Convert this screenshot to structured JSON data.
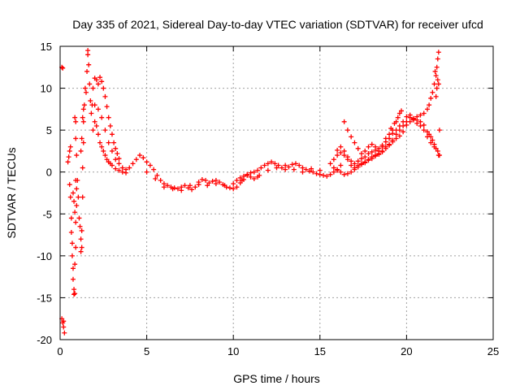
{
  "chart_data": {
    "type": "scatter",
    "title": "Day 335 of 2021, Sidereal Day-to-day VTEC variation (SDTVAR) for receiver ufcd",
    "xlabel": "GPS time / hours",
    "ylabel": "SDTVAR / TECUs",
    "xlim": [
      0,
      25
    ],
    "ylim": [
      -20,
      15
    ],
    "xticks": [
      0,
      5,
      10,
      15,
      20,
      25
    ],
    "yticks": [
      -20,
      -15,
      -10,
      -5,
      0,
      5,
      10,
      15
    ],
    "grid": true,
    "marker": "+",
    "series": [
      {
        "name": "SDTVAR",
        "color": "#ff0000",
        "points": [
          [
            0.1,
            12.5
          ],
          [
            0.15,
            12.4
          ],
          [
            0.1,
            -17.5
          ],
          [
            0.15,
            -18.0
          ],
          [
            0.2,
            -18.5
          ],
          [
            0.25,
            -19.2
          ],
          [
            0.2,
            -17.8
          ],
          [
            0.45,
            1.2
          ],
          [
            0.5,
            1.8
          ],
          [
            0.55,
            2.5
          ],
          [
            0.6,
            3.0
          ],
          [
            0.55,
            -1.5
          ],
          [
            0.6,
            -3.0
          ],
          [
            0.65,
            -5.5
          ],
          [
            0.65,
            -7.2
          ],
          [
            0.7,
            -8.5
          ],
          [
            0.7,
            -10.0
          ],
          [
            0.75,
            -11.5
          ],
          [
            0.75,
            -12.8
          ],
          [
            0.8,
            -14.0
          ],
          [
            0.8,
            -14.6
          ],
          [
            0.85,
            -14.5
          ],
          [
            0.85,
            -11.0
          ],
          [
            0.9,
            -9.0
          ],
          [
            0.9,
            -6.0
          ],
          [
            0.95,
            -4.0
          ],
          [
            0.95,
            -2.0
          ],
          [
            0.9,
            -1.0
          ],
          [
            0.75,
            -2.5
          ],
          [
            0.8,
            -3.5
          ],
          [
            0.85,
            -4.8
          ],
          [
            0.85,
            6.5
          ],
          [
            0.9,
            6.0
          ],
          [
            0.9,
            4.0
          ],
          [
            0.95,
            2.0
          ],
          [
            1.0,
            -1.0
          ],
          [
            1.05,
            -3.0
          ],
          [
            1.1,
            -5.5
          ],
          [
            1.15,
            -6.5
          ],
          [
            1.2,
            -8.0
          ],
          [
            1.2,
            -9.5
          ],
          [
            1.25,
            -9.0
          ],
          [
            1.25,
            -7.0
          ],
          [
            1.3,
            -3.0
          ],
          [
            1.3,
            0.5
          ],
          [
            1.35,
            3.5
          ],
          [
            1.35,
            6.0
          ],
          [
            1.4,
            8.0
          ],
          [
            1.45,
            10.0
          ],
          [
            1.2,
            2.5
          ],
          [
            1.25,
            4.0
          ],
          [
            1.3,
            6.5
          ],
          [
            1.35,
            7.5
          ],
          [
            1.5,
            9.5
          ],
          [
            1.55,
            12.0
          ],
          [
            1.6,
            14.0
          ],
          [
            1.6,
            14.5
          ],
          [
            1.65,
            12.8
          ],
          [
            1.7,
            10.5
          ],
          [
            1.75,
            8.5
          ],
          [
            1.8,
            7.0
          ],
          [
            1.85,
            8.0
          ],
          [
            1.9,
            10.0
          ],
          [
            2.0,
            11.2
          ],
          [
            2.1,
            11.0
          ],
          [
            2.2,
            10.5
          ],
          [
            2.3,
            11.3
          ],
          [
            2.4,
            10.8
          ],
          [
            2.5,
            10.0
          ],
          [
            2.6,
            9.0
          ],
          [
            2.7,
            7.8
          ],
          [
            2.8,
            6.5
          ],
          [
            2.9,
            5.5
          ],
          [
            3.0,
            4.5
          ],
          [
            3.1,
            3.5
          ],
          [
            3.2,
            2.8
          ],
          [
            3.3,
            2.2
          ],
          [
            3.4,
            1.6
          ],
          [
            1.9,
            5.0
          ],
          [
            2.0,
            6.0
          ],
          [
            2.1,
            5.5
          ],
          [
            2.2,
            4.5
          ],
          [
            2.3,
            3.5
          ],
          [
            2.4,
            3.0
          ],
          [
            2.5,
            2.5
          ],
          [
            2.6,
            2.0
          ],
          [
            2.7,
            1.5
          ],
          [
            2.8,
            1.2
          ],
          [
            2.9,
            1.0
          ],
          [
            3.0,
            0.8
          ],
          [
            3.2,
            0.4
          ],
          [
            3.4,
            0.2
          ],
          [
            3.6,
            0.0
          ],
          [
            3.8,
            -0.1
          ],
          [
            2.0,
            8.0
          ],
          [
            2.2,
            7.5
          ],
          [
            2.4,
            6.5
          ],
          [
            2.6,
            5.0
          ],
          [
            2.8,
            3.5
          ],
          [
            3.0,
            2.5
          ],
          [
            3.2,
            1.5
          ],
          [
            3.4,
            1.0
          ],
          [
            3.6,
            0.5
          ],
          [
            3.8,
            0.3
          ],
          [
            4.0,
            0.5
          ],
          [
            4.2,
            1.0
          ],
          [
            4.4,
            1.5
          ],
          [
            4.6,
            2.0
          ],
          [
            4.8,
            1.7
          ],
          [
            5.0,
            1.2
          ],
          [
            5.2,
            0.8
          ],
          [
            5.4,
            0.3
          ],
          [
            5.6,
            -0.4
          ],
          [
            5.8,
            -1.0
          ],
          [
            6.0,
            -1.4
          ],
          [
            6.2,
            -1.6
          ],
          [
            6.4,
            -1.8
          ],
          [
            6.6,
            -1.9
          ],
          [
            6.8,
            -2.0
          ],
          [
            7.0,
            -1.8
          ],
          [
            7.2,
            -1.6
          ],
          [
            7.4,
            -1.9
          ],
          [
            7.6,
            -2.1
          ],
          [
            7.8,
            -1.8
          ],
          [
            8.0,
            -1.2
          ],
          [
            8.2,
            -0.9
          ],
          [
            8.4,
            -1.0
          ],
          [
            8.6,
            -1.3
          ],
          [
            8.8,
            -1.1
          ],
          [
            9.0,
            -1.0
          ],
          [
            9.2,
            -1.2
          ],
          [
            9.4,
            -1.5
          ],
          [
            9.6,
            -1.8
          ],
          [
            9.8,
            -1.9
          ],
          [
            10.0,
            -2.0
          ],
          [
            10.2,
            -1.8
          ],
          [
            10.4,
            -1.3
          ],
          [
            10.6,
            -0.9
          ],
          [
            10.8,
            -0.4
          ],
          [
            11.0,
            -0.1
          ],
          [
            11.2,
            0.0
          ],
          [
            11.4,
            0.2
          ],
          [
            11.6,
            0.5
          ],
          [
            11.8,
            0.8
          ],
          [
            12.0,
            1.0
          ],
          [
            12.2,
            1.2
          ],
          [
            12.4,
            1.0
          ],
          [
            12.6,
            0.8
          ],
          [
            12.8,
            0.5
          ],
          [
            13.0,
            0.3
          ],
          [
            13.2,
            0.6
          ],
          [
            13.4,
            0.9
          ],
          [
            13.6,
            1.0
          ],
          [
            13.8,
            0.8
          ],
          [
            14.0,
            0.5
          ],
          [
            14.2,
            0.3
          ],
          [
            14.4,
            0.1
          ],
          [
            14.6,
            0.0
          ],
          [
            14.8,
            -0.2
          ],
          [
            15.0,
            -0.3
          ],
          [
            15.2,
            -0.4
          ],
          [
            15.4,
            -0.5
          ],
          [
            15.6,
            -0.3
          ],
          [
            15.8,
            0.0
          ],
          [
            16.0,
            0.3
          ],
          [
            16.2,
            0.8
          ],
          [
            5.0,
            0.0
          ],
          [
            5.5,
            -0.8
          ],
          [
            6.0,
            -1.8
          ],
          [
            6.5,
            -2.0
          ],
          [
            7.0,
            -2.2
          ],
          [
            7.5,
            -1.6
          ],
          [
            8.0,
            -1.5
          ],
          [
            8.5,
            -1.6
          ],
          [
            9.0,
            -1.4
          ],
          [
            9.5,
            -1.6
          ],
          [
            10.0,
            -1.4
          ],
          [
            10.5,
            -1.0
          ],
          [
            11.0,
            -0.6
          ],
          [
            11.5,
            -0.4
          ],
          [
            12.0,
            0.2
          ],
          [
            12.5,
            0.5
          ],
          [
            13.0,
            0.8
          ],
          [
            13.5,
            0.3
          ],
          [
            14.0,
            0.0
          ],
          [
            14.5,
            0.4
          ],
          [
            15.0,
            0.2
          ],
          [
            10.2,
            -1.0
          ],
          [
            10.4,
            -0.7
          ],
          [
            10.6,
            -0.5
          ],
          [
            10.8,
            -0.3
          ],
          [
            11.2,
            -0.8
          ],
          [
            11.4,
            -0.6
          ],
          [
            15.6,
            1.0
          ],
          [
            15.8,
            1.5
          ],
          [
            16.0,
            2.0
          ],
          [
            16.2,
            2.3
          ],
          [
            16.4,
            2.0
          ],
          [
            16.6,
            1.5
          ],
          [
            16.8,
            0.8
          ],
          [
            17.0,
            0.5
          ],
          [
            17.2,
            0.8
          ],
          [
            17.4,
            1.0
          ],
          [
            17.6,
            1.2
          ],
          [
            17.8,
            1.5
          ],
          [
            18.0,
            1.8
          ],
          [
            18.2,
            2.0
          ],
          [
            18.4,
            2.2
          ],
          [
            18.6,
            2.5
          ],
          [
            18.8,
            3.0
          ],
          [
            19.0,
            3.3
          ],
          [
            19.2,
            3.8
          ],
          [
            19.4,
            4.5
          ],
          [
            19.6,
            5.0
          ],
          [
            19.8,
            5.5
          ],
          [
            20.0,
            6.0
          ],
          [
            20.2,
            6.5
          ],
          [
            20.4,
            6.2
          ],
          [
            20.6,
            5.8
          ],
          [
            20.8,
            5.5
          ],
          [
            21.0,
            5.0
          ],
          [
            21.2,
            4.2
          ],
          [
            21.4,
            3.5
          ],
          [
            21.6,
            3.0
          ],
          [
            21.8,
            2.5
          ],
          [
            21.85,
            2.0
          ],
          [
            16.4,
            6.0
          ],
          [
            16.6,
            5.0
          ],
          [
            16.8,
            4.2
          ],
          [
            17.0,
            3.5
          ],
          [
            17.2,
            2.8
          ],
          [
            17.4,
            2.2
          ],
          [
            17.6,
            2.5
          ],
          [
            17.8,
            3.0
          ],
          [
            18.0,
            3.3
          ],
          [
            18.2,
            3.0
          ],
          [
            18.4,
            2.5
          ],
          [
            18.6,
            3.2
          ],
          [
            18.8,
            4.0
          ],
          [
            19.0,
            4.5
          ],
          [
            19.2,
            5.0
          ],
          [
            19.4,
            6.0
          ],
          [
            19.6,
            7.0
          ],
          [
            19.7,
            7.3
          ],
          [
            19.5,
            6.5
          ],
          [
            19.3,
            5.8
          ],
          [
            19.1,
            5.2
          ],
          [
            15.8,
            0.5
          ],
          [
            16.0,
            0.2
          ],
          [
            16.2,
            0.0
          ],
          [
            16.4,
            -0.3
          ],
          [
            16.6,
            -0.2
          ],
          [
            16.8,
            0.0
          ],
          [
            17.0,
            0.3
          ],
          [
            17.2,
            0.6
          ],
          [
            17.4,
            0.9
          ],
          [
            17.6,
            1.1
          ],
          [
            17.8,
            1.4
          ],
          [
            18.0,
            1.6
          ],
          [
            18.2,
            1.9
          ],
          [
            18.4,
            2.1
          ],
          [
            18.6,
            2.4
          ],
          [
            18.8,
            2.8
          ],
          [
            19.0,
            3.2
          ],
          [
            19.2,
            3.6
          ],
          [
            19.4,
            4.0
          ],
          [
            19.6,
            4.3
          ],
          [
            19.8,
            4.8
          ],
          [
            20.0,
            5.6
          ],
          [
            20.2,
            6.0
          ],
          [
            20.4,
            6.3
          ],
          [
            20.6,
            6.6
          ],
          [
            20.8,
            6.8
          ],
          [
            21.0,
            7.0
          ],
          [
            21.2,
            7.5
          ],
          [
            21.3,
            8.0
          ],
          [
            21.4,
            8.8
          ],
          [
            21.5,
            9.5
          ],
          [
            21.6,
            10.5
          ],
          [
            21.7,
            11.5
          ],
          [
            21.75,
            12.5
          ],
          [
            21.8,
            13.5
          ],
          [
            21.85,
            14.3
          ],
          [
            21.8,
            11.0
          ],
          [
            21.75,
            10.0
          ],
          [
            21.7,
            9.0
          ],
          [
            21.65,
            12.0
          ],
          [
            21.85,
            10.5
          ],
          [
            21.9,
            5.0
          ],
          [
            21.9,
            2.0
          ],
          [
            21.7,
            2.8
          ],
          [
            21.6,
            3.3
          ],
          [
            21.5,
            3.8
          ],
          [
            21.4,
            4.2
          ],
          [
            21.3,
            4.5
          ],
          [
            21.2,
            4.8
          ],
          [
            21.0,
            5.6
          ],
          [
            20.8,
            6.0
          ],
          [
            20.6,
            6.2
          ],
          [
            20.4,
            6.4
          ],
          [
            20.2,
            6.8
          ],
          [
            20.0,
            6.6
          ],
          [
            19.8,
            6.0
          ],
          [
            19.6,
            5.5
          ],
          [
            19.4,
            5.0
          ],
          [
            19.2,
            4.6
          ],
          [
            19.0,
            4.0
          ],
          [
            18.8,
            3.6
          ],
          [
            18.6,
            3.0
          ],
          [
            18.4,
            2.8
          ],
          [
            18.2,
            2.6
          ],
          [
            18.0,
            2.4
          ],
          [
            17.8,
            2.2
          ],
          [
            17.6,
            1.8
          ],
          [
            17.4,
            1.6
          ],
          [
            17.2,
            1.3
          ],
          [
            17.0,
            1.0
          ],
          [
            16.8,
            1.3
          ],
          [
            16.6,
            1.8
          ],
          [
            16.4,
            2.5
          ],
          [
            16.2,
            3.0
          ],
          [
            16.0,
            2.6
          ]
        ]
      }
    ]
  }
}
